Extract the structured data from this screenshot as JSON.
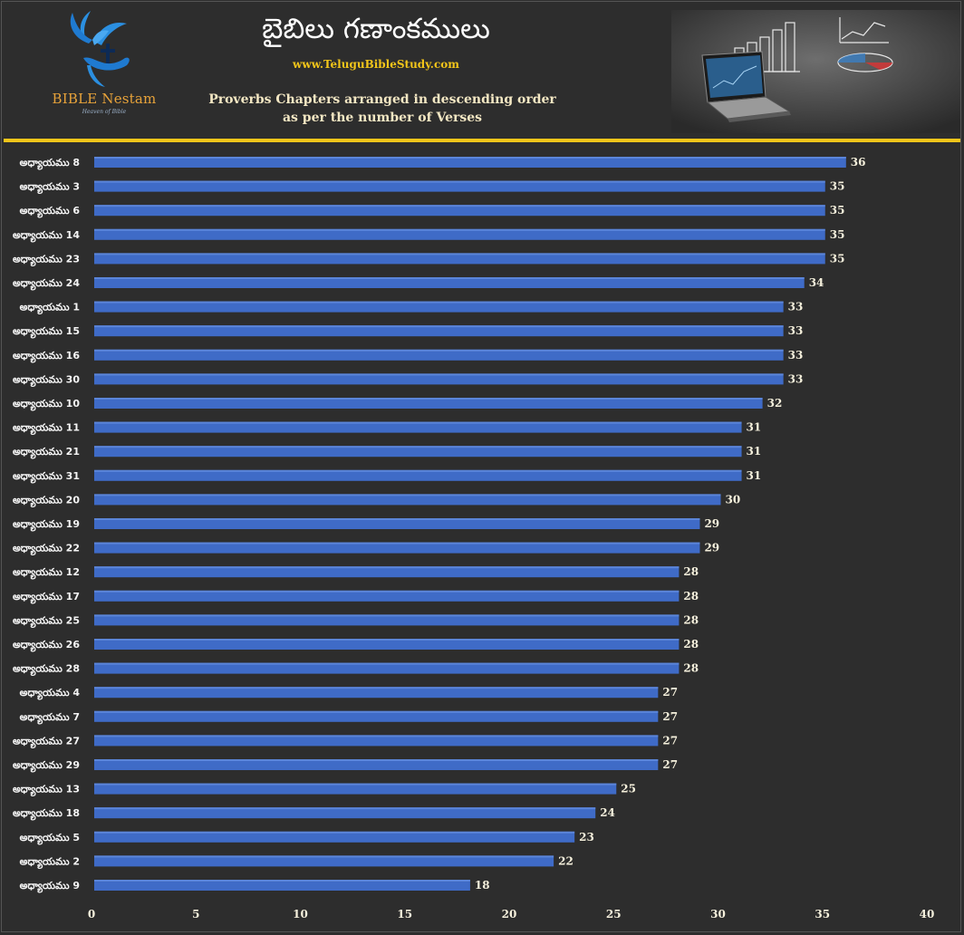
{
  "header": {
    "title": "బైబిలు గణాంకములు",
    "website": "www.TeluguBibleStudy.com",
    "subtitle_line1": "Proverbs Chapters arranged in descending order",
    "subtitle_line2": "as per the number of Verses",
    "logo_text": "BIBLE Nestam",
    "logo_subtext": "Heaven of Bible",
    "logo_icon": "dove-cross-hand-icon",
    "photo_icon": "laptop-charts-photo"
  },
  "colors": {
    "background": "#2d2d2d",
    "bar": "#3f6bc7",
    "bar_top": "#5b85d9",
    "accent_rule": "#f2c51a",
    "value_text": "#f5f0dc"
  },
  "chart_data": {
    "type": "bar",
    "orientation": "horizontal",
    "categories": [
      "అధ్యాయము 8",
      "అధ్యాయము 3",
      "అధ్యాయము 6",
      "అధ్యాయము 14",
      "అధ్యాయము 23",
      "అధ్యాయము 24",
      "అధ్యాయము 1",
      "అధ్యాయము 15",
      "అధ్యాయము 16",
      "అధ్యాయము 30",
      "అధ్యాయము 10",
      "అధ్యాయము 11",
      "అధ్యాయము 21",
      "అధ్యాయము 31",
      "అధ్యాయము 20",
      "అధ్యాయము 19",
      "అధ్యాయము 22",
      "అధ్యాయము 12",
      "అధ్యాయము 17",
      "అధ్యాయము 25",
      "అధ్యాయము 26",
      "అధ్యాయము 28",
      "అధ్యాయము 4",
      "అధ్యాయము 7",
      "అధ్యాయము 27",
      "అధ్యాయము 29",
      "అధ్యాయము 13",
      "అధ్యాయము 18",
      "అధ్యాయము 5",
      "అధ్యాయము 2",
      "అధ్యాయము 9"
    ],
    "values": [
      36,
      35,
      35,
      35,
      35,
      34,
      33,
      33,
      33,
      33,
      32,
      31,
      31,
      31,
      30,
      29,
      29,
      28,
      28,
      28,
      28,
      28,
      27,
      27,
      27,
      27,
      25,
      24,
      23,
      22,
      18
    ],
    "xlim": [
      0,
      40
    ],
    "xticks": [
      0,
      5,
      10,
      15,
      20,
      25,
      30,
      35,
      40
    ],
    "data_labels": true,
    "grid": false,
    "legend": "none"
  }
}
